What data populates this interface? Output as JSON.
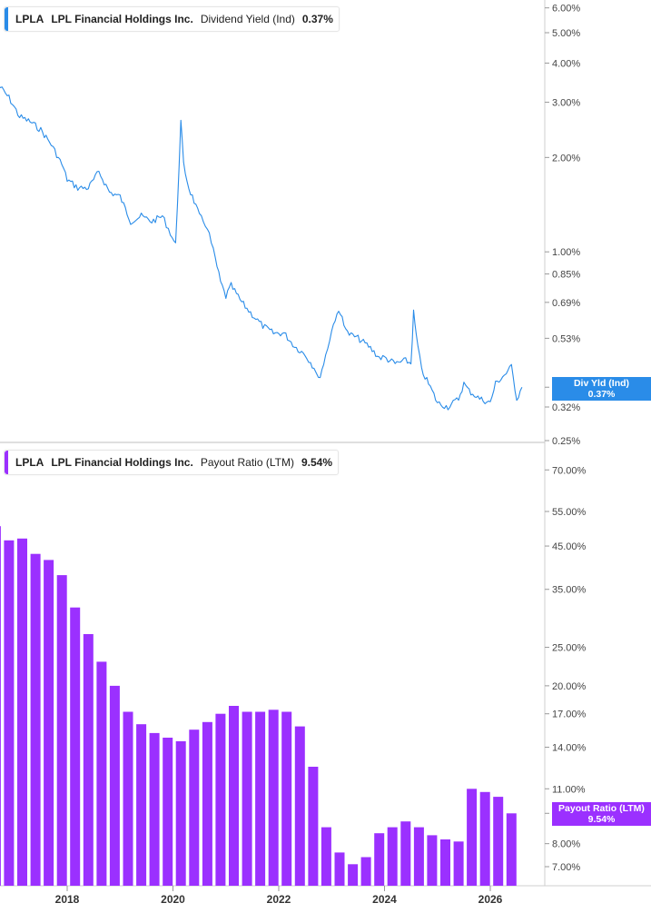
{
  "colors": {
    "yield": "#2a8ce8",
    "payout": "#9b30ff",
    "grid": "#e6e6e6",
    "axis_text": "#444444"
  },
  "top_legend": {
    "ticker": "LPLA",
    "name": "LPL Financial Holdings Inc.",
    "metric": "Dividend Yield (Ind)",
    "value": "0.37%"
  },
  "bottom_legend": {
    "ticker": "LPLA",
    "name": "LPL Financial Holdings Inc.",
    "metric": "Payout Ratio (LTM)",
    "value": "9.54%"
  },
  "top_tag": {
    "label": "Div Yld (Ind)",
    "value": "0.37%"
  },
  "bottom_tag": {
    "label": "Payout Ratio (LTM)",
    "value": "9.54%"
  },
  "chart_data": [
    {
      "type": "line",
      "series": [
        {
          "name": "Dividend Yield (Ind)",
          "x": [
            2016.7,
            2016.9,
            2017.1,
            2017.3,
            2017.5,
            2017.7,
            2017.9,
            2018.0,
            2018.2,
            2018.4,
            2018.6,
            2018.8,
            2019.0,
            2019.2,
            2019.4,
            2019.6,
            2019.8,
            2019.95,
            2020.05,
            2020.15,
            2020.2,
            2020.3,
            2020.4,
            2020.5,
            2020.65,
            2020.8,
            2020.9,
            2021.0,
            2021.1,
            2021.3,
            2021.5,
            2021.7,
            2021.9,
            2022.1,
            2022.3,
            2022.5,
            2022.7,
            2022.75,
            2022.85,
            2023.0,
            2023.1,
            2023.2,
            2023.3,
            2023.5,
            2023.7,
            2023.9,
            2024.0,
            2024.2,
            2024.4,
            2024.5,
            2024.55,
            2024.6,
            2024.7,
            2024.9,
            2025.0,
            2025.2,
            2025.4,
            2025.5,
            2025.6,
            2025.8,
            2026.0,
            2026.1,
            2026.3,
            2026.4,
            2026.5,
            2026.6
          ],
          "y": [
            3.4,
            3.1,
            2.7,
            2.6,
            2.45,
            2.2,
            1.9,
            1.7,
            1.6,
            1.6,
            1.8,
            1.55,
            1.5,
            1.25,
            1.3,
            1.25,
            1.3,
            1.15,
            1.05,
            2.6,
            1.9,
            1.6,
            1.45,
            1.3,
            1.2,
            0.95,
            0.8,
            0.72,
            0.78,
            0.69,
            0.63,
            0.58,
            0.55,
            0.55,
            0.5,
            0.47,
            0.42,
            0.39,
            0.44,
            0.56,
            0.64,
            0.62,
            0.55,
            0.53,
            0.5,
            0.46,
            0.46,
            0.44,
            0.45,
            0.44,
            0.64,
            0.54,
            0.42,
            0.36,
            0.33,
            0.32,
            0.34,
            0.38,
            0.36,
            0.34,
            0.33,
            0.38,
            0.41,
            0.43,
            0.34,
            0.37
          ]
        }
      ],
      "yscale": "log",
      "yticks": [
        "6.00%",
        "5.00%",
        "4.00%",
        "3.00%",
        "2.00%",
        "1.00%",
        "0.85%",
        "0.69%",
        "0.53%",
        "0.37%",
        "0.32%",
        "0.25%"
      ],
      "ylim": [
        0.25,
        6.2
      ]
    },
    {
      "type": "bar",
      "series": [
        {
          "name": "Payout Ratio (LTM)",
          "x": [
            2016.65,
            2016.9,
            2017.15,
            2017.4,
            2017.65,
            2017.9,
            2018.15,
            2018.4,
            2018.65,
            2018.9,
            2019.15,
            2019.4,
            2019.65,
            2019.9,
            2020.15,
            2020.4,
            2020.65,
            2020.9,
            2021.15,
            2021.4,
            2021.65,
            2021.9,
            2022.15,
            2022.4,
            2022.65,
            2022.9,
            2023.15,
            2023.4,
            2023.65,
            2023.9,
            2024.15,
            2024.4,
            2024.65,
            2024.9,
            2025.15,
            2025.4,
            2025.65,
            2025.9,
            2026.15,
            2026.4
          ],
          "values": [
            50.5,
            46.5,
            47.0,
            43.0,
            41.5,
            38.0,
            31.5,
            27.0,
            23.0,
            20.0,
            17.2,
            16.0,
            15.2,
            14.8,
            14.5,
            15.5,
            16.2,
            17.0,
            17.8,
            17.2,
            17.2,
            17.4,
            17.2,
            15.8,
            12.5,
            8.8,
            7.6,
            7.1,
            7.4,
            8.5,
            8.8,
            9.1,
            8.8,
            8.4,
            8.2,
            8.1,
            11.0,
            10.8,
            10.5,
            9.54
          ]
        }
      ],
      "yscale": "log",
      "yticks": [
        "70.00%",
        "55.00%",
        "45.00%",
        "35.00%",
        "25.00%",
        "20.00%",
        "17.00%",
        "14.00%",
        "11.00%",
        "9.54%",
        "8.00%",
        "7.00%"
      ],
      "xticks": [
        "2018",
        "2020",
        "2022",
        "2024",
        "2026"
      ],
      "ylim": [
        6.5,
        75
      ]
    }
  ]
}
